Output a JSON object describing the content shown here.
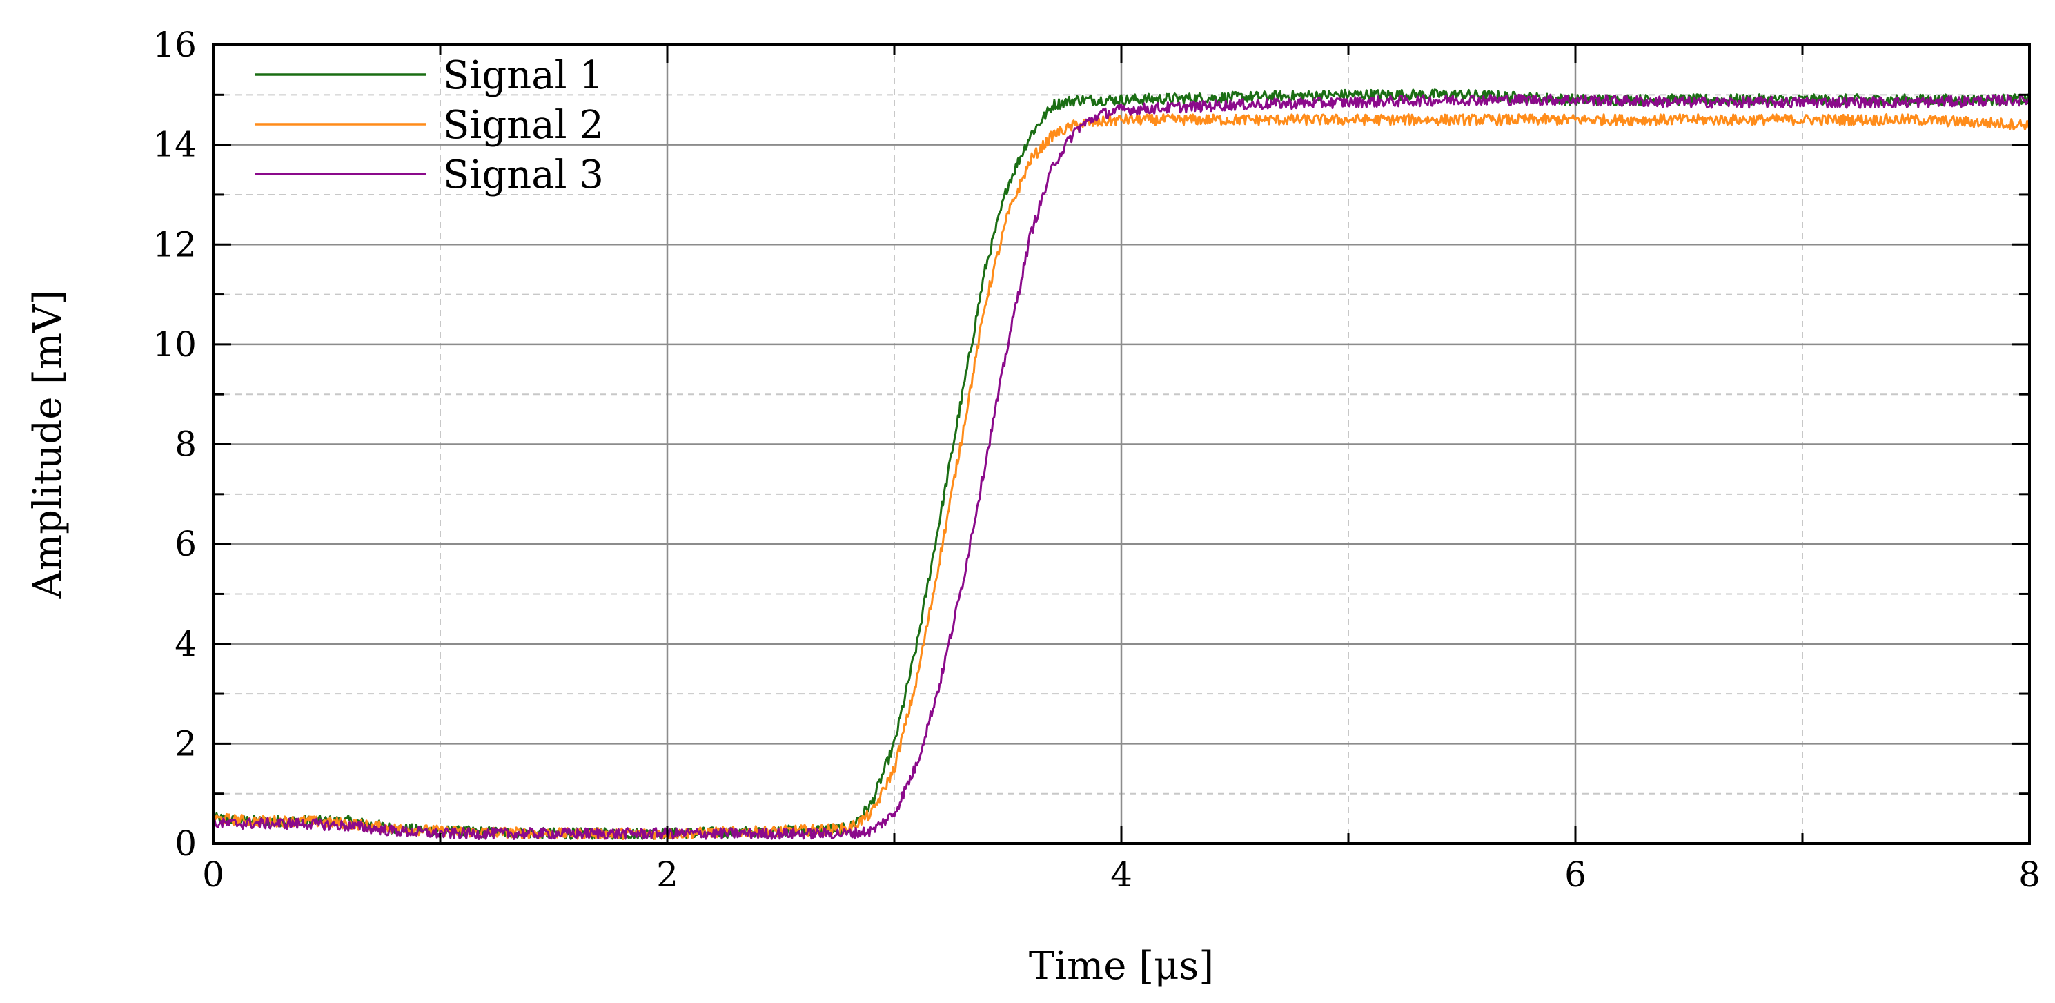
{
  "chart_data": {
    "type": "line",
    "xlabel": "Time [μs]",
    "ylabel": "Amplitude [mV]",
    "xlim": [
      0,
      8
    ],
    "ylim": [
      0,
      16
    ],
    "x_major_ticks": [
      0,
      2,
      4,
      6,
      8
    ],
    "x_minor_ticks": [
      1,
      3,
      5,
      7
    ],
    "y_major_ticks": [
      0,
      2,
      4,
      6,
      8,
      10,
      12,
      14,
      16
    ],
    "y_minor_ticks": [
      1,
      3,
      5,
      7,
      9,
      11,
      13,
      15
    ],
    "grid": true,
    "legend_position": "top-left",
    "series": [
      {
        "name": "Signal 1",
        "color": "#1b6e14",
        "x": [
          0.0,
          0.2,
          0.4,
          0.6,
          0.8,
          1.0,
          1.5,
          2.0,
          2.5,
          2.8,
          2.9,
          3.0,
          3.1,
          3.2,
          3.3,
          3.4,
          3.5,
          3.6,
          3.7,
          3.8,
          4.0,
          4.5,
          5.0,
          5.5,
          6.0,
          6.5,
          7.0,
          7.5,
          8.0
        ],
        "y": [
          0.5,
          0.45,
          0.45,
          0.45,
          0.3,
          0.25,
          0.2,
          0.2,
          0.25,
          0.3,
          0.8,
          2.0,
          4.0,
          6.5,
          9.0,
          11.5,
          13.2,
          14.2,
          14.8,
          14.9,
          14.9,
          14.95,
          15.0,
          15.0,
          14.9,
          14.9,
          14.9,
          14.9,
          14.9
        ]
      },
      {
        "name": "Signal 2",
        "color": "#ff8c1a",
        "x": [
          0.0,
          0.2,
          0.4,
          0.6,
          0.8,
          1.0,
          1.5,
          2.0,
          2.5,
          2.8,
          2.9,
          3.0,
          3.1,
          3.2,
          3.3,
          3.4,
          3.5,
          3.6,
          3.7,
          3.8,
          4.0,
          4.5,
          5.0,
          5.5,
          6.0,
          6.5,
          7.0,
          7.5,
          8.0
        ],
        "y": [
          0.5,
          0.45,
          0.45,
          0.4,
          0.3,
          0.25,
          0.2,
          0.2,
          0.25,
          0.3,
          0.6,
          1.5,
          3.3,
          5.7,
          8.2,
          10.8,
          12.6,
          13.7,
          14.2,
          14.4,
          14.5,
          14.5,
          14.5,
          14.5,
          14.5,
          14.5,
          14.5,
          14.5,
          14.4
        ]
      },
      {
        "name": "Signal 3",
        "color": "#8b0a8b",
        "x": [
          0.0,
          0.2,
          0.4,
          0.6,
          0.8,
          1.0,
          1.5,
          2.0,
          2.5,
          2.8,
          2.9,
          3.0,
          3.1,
          3.2,
          3.3,
          3.4,
          3.5,
          3.6,
          3.7,
          3.8,
          3.9,
          4.0,
          4.5,
          5.0,
          5.5,
          6.0,
          6.5,
          7.0,
          7.5,
          8.0
        ],
        "y": [
          0.4,
          0.4,
          0.4,
          0.35,
          0.25,
          0.2,
          0.2,
          0.2,
          0.2,
          0.2,
          0.25,
          0.6,
          1.6,
          3.2,
          5.2,
          7.6,
          10.0,
          12.2,
          13.6,
          14.3,
          14.6,
          14.7,
          14.8,
          14.85,
          14.9,
          14.9,
          14.85,
          14.85,
          14.85,
          14.9
        ]
      }
    ]
  }
}
